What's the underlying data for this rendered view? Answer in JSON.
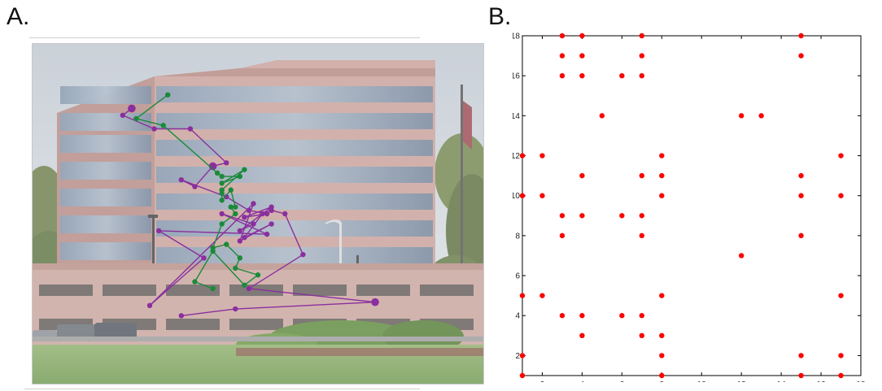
{
  "figure": {
    "panel_a_label": "A.",
    "panel_b_label": "B."
  },
  "photo": {
    "subject": "office-building-photo",
    "fixation_colors": {
      "purple": "#8a2f9e",
      "green": "#1b8a3a"
    },
    "scanpaths": [
      {
        "color": "#8a2f9e",
        "points": [
          [
            0.22,
            0.19
          ],
          [
            0.2,
            0.21
          ],
          [
            0.27,
            0.25
          ],
          [
            0.35,
            0.25
          ],
          [
            0.43,
            0.35
          ],
          [
            0.4,
            0.36
          ],
          [
            0.36,
            0.42
          ],
          [
            0.33,
            0.4
          ],
          [
            0.43,
            0.45
          ],
          [
            0.48,
            0.49
          ],
          [
            0.52,
            0.5
          ],
          [
            0.47,
            0.51
          ],
          [
            0.53,
            0.48
          ],
          [
            0.46,
            0.55
          ],
          [
            0.49,
            0.53
          ],
          [
            0.42,
            0.5
          ],
          [
            0.52,
            0.56
          ],
          [
            0.28,
            0.55
          ],
          [
            0.38,
            0.63
          ],
          [
            0.26,
            0.77
          ],
          [
            0.49,
            0.47
          ],
          [
            0.46,
            0.58
          ],
          [
            0.53,
            0.53
          ],
          [
            0.47,
            0.57
          ],
          [
            0.51,
            0.5
          ],
          [
            0.53,
            0.49
          ],
          [
            0.56,
            0.5
          ],
          [
            0.6,
            0.62
          ],
          [
            0.48,
            0.72
          ],
          [
            0.76,
            0.76
          ],
          [
            0.45,
            0.78
          ],
          [
            0.33,
            0.8
          ]
        ],
        "sizes": [
          3,
          2,
          2,
          2,
          2,
          3,
          2,
          2,
          2,
          2,
          2,
          2,
          2,
          2,
          2,
          2,
          2,
          2,
          2,
          2,
          2,
          2,
          2,
          2,
          2,
          2,
          2,
          2,
          2,
          3,
          2,
          2
        ]
      },
      {
        "color": "#1b8a3a",
        "points": [
          [
            0.3,
            0.15
          ],
          [
            0.23,
            0.22
          ],
          [
            0.29,
            0.24
          ],
          [
            0.41,
            0.38
          ],
          [
            0.42,
            0.39
          ],
          [
            0.46,
            0.39
          ],
          [
            0.42,
            0.41
          ],
          [
            0.47,
            0.37
          ],
          [
            0.42,
            0.43
          ],
          [
            0.42,
            0.44
          ],
          [
            0.42,
            0.46
          ],
          [
            0.44,
            0.43
          ],
          [
            0.45,
            0.48
          ],
          [
            0.44,
            0.48
          ],
          [
            0.45,
            0.5
          ],
          [
            0.42,
            0.53
          ],
          [
            0.4,
            0.6
          ],
          [
            0.43,
            0.59
          ],
          [
            0.46,
            0.63
          ],
          [
            0.45,
            0.66
          ],
          [
            0.5,
            0.68
          ],
          [
            0.47,
            0.71
          ],
          [
            0.4,
            0.61
          ],
          [
            0.36,
            0.7
          ],
          [
            0.4,
            0.72
          ]
        ],
        "sizes": [
          2,
          2,
          2,
          2,
          2,
          2,
          2,
          2,
          2,
          2,
          2,
          2,
          2,
          2,
          2,
          2,
          2,
          2,
          2,
          2,
          2,
          2,
          2,
          2,
          2
        ]
      }
    ]
  },
  "chart_data": {
    "type": "scatter",
    "title": "",
    "xlabel": "",
    "ylabel": "",
    "xlim": [
      1,
      18
    ],
    "ylim": [
      1,
      18
    ],
    "xticks": [
      2,
      4,
      6,
      8,
      10,
      12,
      14,
      16,
      18
    ],
    "yticks": [
      2,
      4,
      6,
      8,
      10,
      12,
      14,
      16,
      18
    ],
    "xtick_labels": [
      "2",
      "4",
      "6",
      "8",
      "10",
      "12",
      "14",
      "16",
      "18"
    ],
    "ytick_labels": [
      "2",
      "4",
      "6",
      "8",
      "10",
      "12",
      "14",
      "16",
      "18"
    ],
    "grid": false,
    "marker_color": "#ff0000",
    "points": [
      [
        3,
        18
      ],
      [
        4,
        18
      ],
      [
        7,
        18
      ],
      [
        15,
        18
      ],
      [
        3,
        17
      ],
      [
        4,
        17
      ],
      [
        7,
        17
      ],
      [
        15,
        17
      ],
      [
        3,
        16
      ],
      [
        4,
        16
      ],
      [
        6,
        16
      ],
      [
        7,
        16
      ],
      [
        5,
        14
      ],
      [
        12,
        14
      ],
      [
        13,
        14
      ],
      [
        1,
        12
      ],
      [
        2,
        12
      ],
      [
        8,
        12
      ],
      [
        17,
        12
      ],
      [
        4,
        11
      ],
      [
        7,
        11
      ],
      [
        8,
        11
      ],
      [
        15,
        11
      ],
      [
        1,
        10
      ],
      [
        2,
        10
      ],
      [
        8,
        10
      ],
      [
        15,
        10
      ],
      [
        17,
        10
      ],
      [
        3,
        9
      ],
      [
        4,
        9
      ],
      [
        6,
        9
      ],
      [
        7,
        9
      ],
      [
        3,
        8
      ],
      [
        7,
        8
      ],
      [
        15,
        8
      ],
      [
        12,
        7
      ],
      [
        1,
        5
      ],
      [
        2,
        5
      ],
      [
        8,
        5
      ],
      [
        17,
        5
      ],
      [
        3,
        4
      ],
      [
        4,
        4
      ],
      [
        6,
        4
      ],
      [
        7,
        4
      ],
      [
        4,
        3
      ],
      [
        7,
        3
      ],
      [
        8,
        3
      ],
      [
        1,
        2
      ],
      [
        8,
        2
      ],
      [
        15,
        2
      ],
      [
        17,
        2
      ],
      [
        1,
        1
      ],
      [
        8,
        1
      ],
      [
        15,
        1
      ],
      [
        17,
        1
      ]
    ]
  }
}
